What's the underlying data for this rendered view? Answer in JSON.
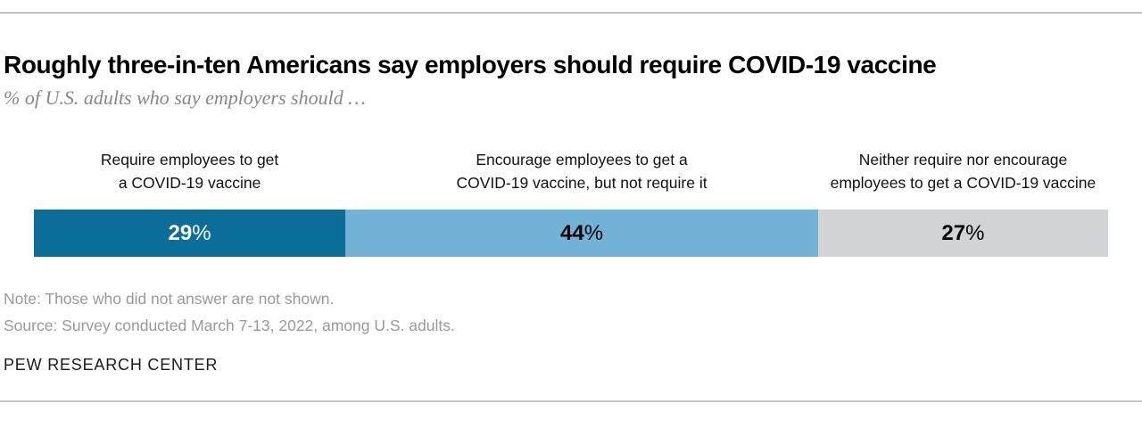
{
  "header": {
    "title": "Roughly three-in-ten Americans say employers should require COVID-19 vaccine",
    "subtitle": "% of U.S. adults who say employers should …"
  },
  "chart_data": {
    "type": "bar",
    "orientation": "horizontal-stacked",
    "title": "Roughly three-in-ten Americans say employers should require COVID-19 vaccine",
    "subtitle": "% of U.S. adults who say employers should …",
    "unit": "%",
    "categories": [
      "Require employees to get a COVID-19 vaccine",
      "Encourage employees to get a COVID-19 vaccine, but not require it",
      "Neither require nor encourage employees to get a COVID-19 vaccine"
    ],
    "values": [
      29,
      44,
      27
    ],
    "xlim": [
      0,
      100
    ],
    "grid": false,
    "legend": "none",
    "segments": [
      {
        "label_line1": "Require employees to get",
        "label_line2": "a COVID-19 vaccine",
        "value": 29,
        "display_number": "29",
        "display_sign": "%",
        "color": "#0a6e99",
        "text_color": "#ffffff"
      },
      {
        "label_line1": "Encourage employees to get a",
        "label_line2": "COVID-19 vaccine, but not require it",
        "value": 44,
        "display_number": "44",
        "display_sign": "%",
        "color": "#71b2d6",
        "text_color": "#000000"
      },
      {
        "label_line1": "Neither require nor encourage",
        "label_line2": "employees to get a COVID-19 vaccine",
        "value": 27,
        "display_number": "27",
        "display_sign": "%",
        "color": "#d1d3d4",
        "text_color": "#000000"
      }
    ]
  },
  "footer": {
    "note": "Note: Those who did not answer are not shown.",
    "source": "Source: Survey conducted March 7-13, 2022, among U.S. adults.",
    "brand": "PEW RESEARCH CENTER"
  },
  "colors": {
    "accent_dark_blue": "#0a6e99",
    "accent_light_blue": "#71b2d6",
    "neutral_gray": "#d1d3d4",
    "footnote_gray": "#97999b",
    "subtitle_gray": "#85878a",
    "rule_top": "#8a8c8e",
    "rule_bottom": "#c6c7c8"
  }
}
